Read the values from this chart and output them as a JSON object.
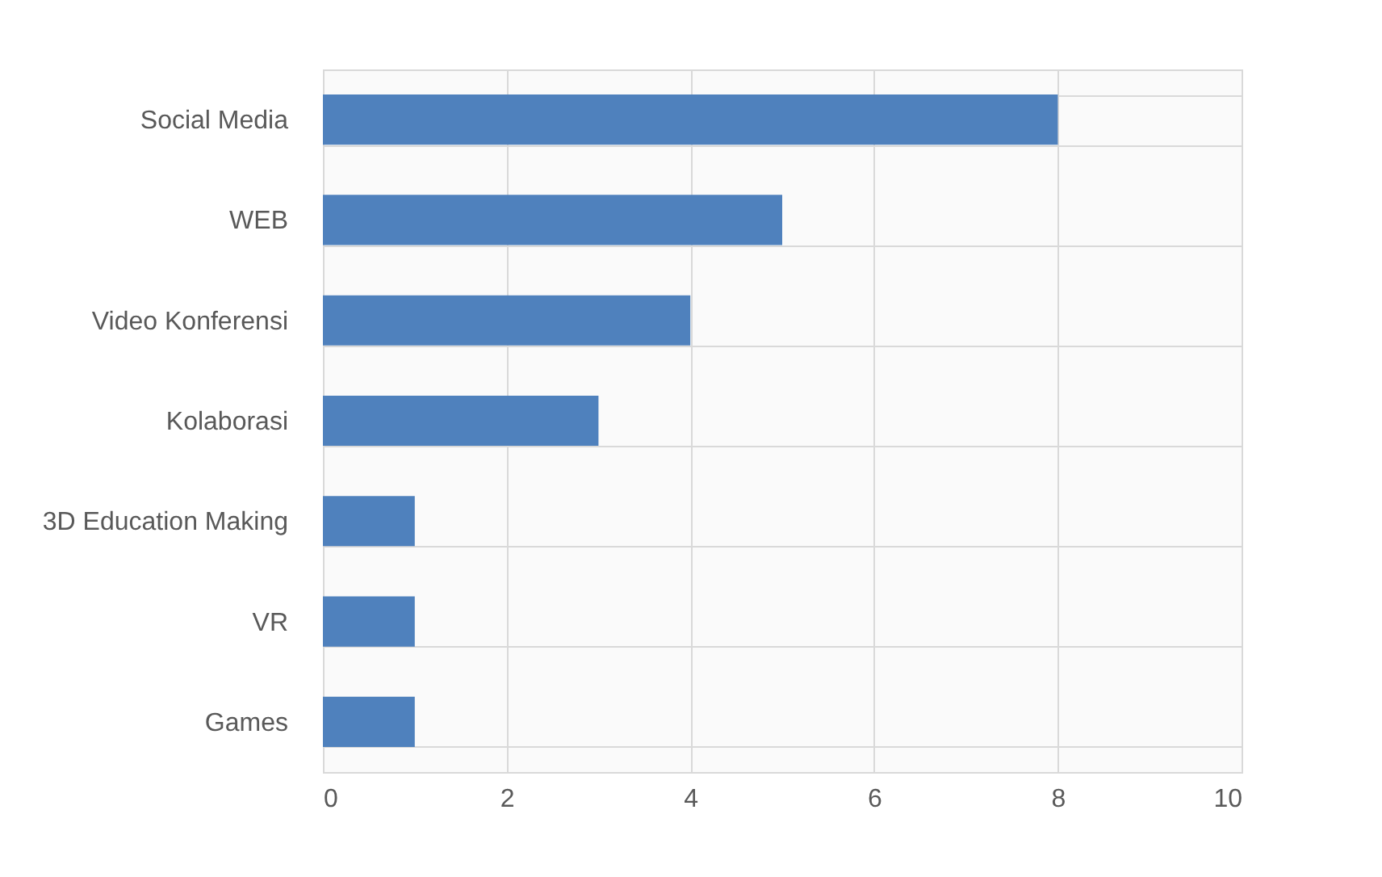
{
  "chart_data": {
    "type": "bar",
    "orientation": "horizontal",
    "categories": [
      "Social Media",
      "WEB",
      "Video Konferensi",
      "Kolaborasi",
      "3D Education Making",
      "VR",
      "Games"
    ],
    "values": [
      8,
      5,
      4,
      3,
      1,
      1,
      1
    ],
    "color": "#4f81bd",
    "xlim": [
      0,
      10
    ],
    "xticks": [
      0,
      2,
      4,
      6,
      8,
      10
    ],
    "grid": true
  }
}
